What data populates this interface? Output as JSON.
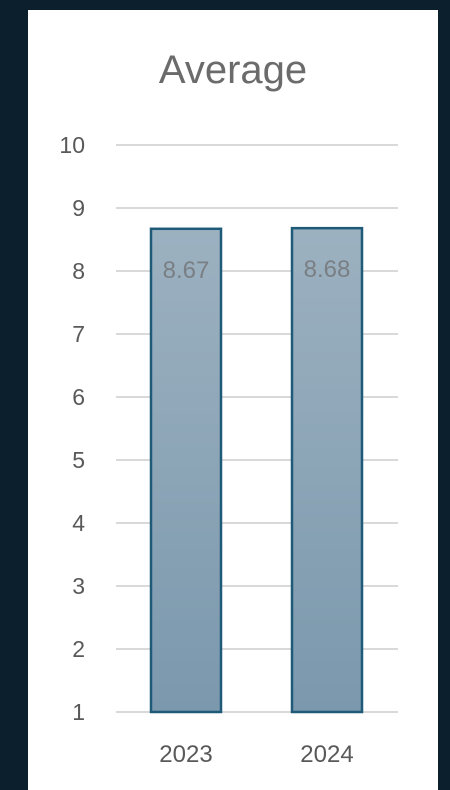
{
  "chart_data": {
    "type": "bar",
    "title": "Average",
    "categories": [
      "2023",
      "2024"
    ],
    "values": [
      8.67,
      8.68
    ],
    "data_labels": [
      "8.67",
      "8.68"
    ],
    "ylim": [
      1,
      10
    ],
    "yticks": [
      "1",
      "2",
      "3",
      "4",
      "5",
      "6",
      "7",
      "8",
      "9",
      "10"
    ],
    "xlabel": "",
    "ylabel": "",
    "grid": true,
    "legend": "none",
    "colors": {
      "background": "#0c1f2c",
      "card": "#ffffff",
      "bar_top": "#9cb1c0",
      "bar_bottom": "#7b98ad",
      "bar_border": "#1f5a78",
      "gridline": "#d9d9d9"
    }
  }
}
